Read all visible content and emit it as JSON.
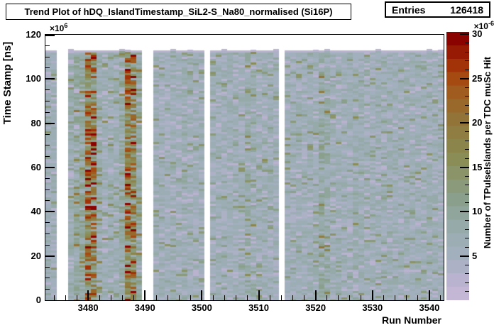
{
  "title": "Trend Plot of hDQ_IslandTimestamp_SiL2-S_Na80_normalised (Si16P)",
  "stats": {
    "label": "Entries",
    "value": "126418"
  },
  "axes": {
    "x": {
      "title": "Run Number"
    },
    "y": {
      "title": "Time Stamp [ns]",
      "exp_base": "×10",
      "exp": "6"
    },
    "z": {
      "title": "Number of TPulseIslands per TDC muSc Hit",
      "exp_base": "×10",
      "exp": "-6"
    }
  },
  "chart_data": {
    "type": "heatmap",
    "title": "Trend Plot of hDQ_IslandTimestamp_SiL2-S_Na80_normalised (Si16P)",
    "entries": 126418,
    "xlabel": "Run Number",
    "ylabel": "Time Stamp [ns]",
    "zlabel": "Number of TPulseIslands per TDC muSc Hit",
    "x_range": [
      3472.5,
      3542.5
    ],
    "x_ticks": [
      3480,
      3490,
      3500,
      3510,
      3520,
      3530,
      3540
    ],
    "x_minor_step": 2,
    "y_unit": "1e6",
    "y_range": [
      0,
      120
    ],
    "y_ticks": [
      0,
      20,
      40,
      60,
      80,
      100,
      120
    ],
    "y_minor_step": 5,
    "y_data_max": 113,
    "z_unit": "1e-6",
    "z_range": [
      0,
      30.24
    ],
    "z_ticks": [
      5,
      10,
      15,
      20,
      25,
      30
    ],
    "z_minor_step": 1,
    "legend_position": "right-colorbar",
    "grid": false,
    "missing_runs": [
      3475,
      3476,
      3490,
      3491,
      3501,
      3514
    ],
    "hot_runs": [
      3480,
      3481,
      3487,
      3488
    ],
    "run_mean_z": [
      [
        3473,
        6.2
      ],
      [
        3474,
        6.0
      ],
      [
        3477,
        7.5
      ],
      [
        3478,
        9.0
      ],
      [
        3479,
        9.5
      ],
      [
        3480,
        16.5
      ],
      [
        3481,
        15.5
      ],
      [
        3482,
        7.5
      ],
      [
        3483,
        6.8
      ],
      [
        3484,
        6.8
      ],
      [
        3485,
        6.9
      ],
      [
        3486,
        8.5
      ],
      [
        3487,
        16.0
      ],
      [
        3488,
        14.5
      ],
      [
        3489,
        9.5
      ],
      [
        3492,
        6.2
      ],
      [
        3493,
        6.4
      ],
      [
        3494,
        6.1
      ],
      [
        3495,
        6.6
      ],
      [
        3496,
        6.3
      ],
      [
        3497,
        7.0
      ],
      [
        3498,
        6.4
      ],
      [
        3499,
        6.2
      ],
      [
        3500,
        6.3
      ],
      [
        3502,
        6.1
      ],
      [
        3503,
        6.3
      ],
      [
        3504,
        6.2
      ],
      [
        3505,
        6.4
      ],
      [
        3506,
        6.2
      ],
      [
        3507,
        6.6
      ],
      [
        3508,
        8.0
      ],
      [
        3509,
        7.5
      ],
      [
        3510,
        6.4
      ],
      [
        3511,
        6.6
      ],
      [
        3512,
        6.3
      ],
      [
        3513,
        6.1
      ],
      [
        3515,
        6.3
      ],
      [
        3516,
        6.1
      ],
      [
        3517,
        6.4
      ],
      [
        3518,
        6.2
      ],
      [
        3519,
        6.5
      ],
      [
        3520,
        6.8
      ],
      [
        3521,
        8.8
      ],
      [
        3522,
        8.2
      ],
      [
        3523,
        6.6
      ],
      [
        3524,
        6.3
      ],
      [
        3525,
        6.2
      ],
      [
        3526,
        6.5
      ],
      [
        3527,
        7.1
      ],
      [
        3528,
        6.9
      ],
      [
        3529,
        6.4
      ],
      [
        3530,
        6.2
      ],
      [
        3531,
        6.5
      ],
      [
        3532,
        6.3
      ],
      [
        3533,
        6.6
      ],
      [
        3534,
        6.4
      ],
      [
        3535,
        6.2
      ],
      [
        3536,
        6.5
      ],
      [
        3537,
        6.3
      ],
      [
        3538,
        6.4
      ],
      [
        3539,
        6.2
      ],
      [
        3540,
        6.5
      ],
      [
        3541,
        6.3
      ],
      [
        3542,
        6.1
      ]
    ],
    "palette": [
      "#c4b7d6",
      "#b9b3cf",
      "#adb1c6",
      "#a2afbc",
      "#9cadb4",
      "#96aaa9",
      "#90a59b",
      "#8ba08c",
      "#8a9a7a",
      "#8a9468",
      "#8b8d57",
      "#8b854b",
      "#8f7d41",
      "#937438",
      "#99692c",
      "#a05b1f",
      "#a54a11",
      "#a23208",
      "#971a04",
      "#8b0301"
    ],
    "cap_color": "#b9b3cf"
  }
}
